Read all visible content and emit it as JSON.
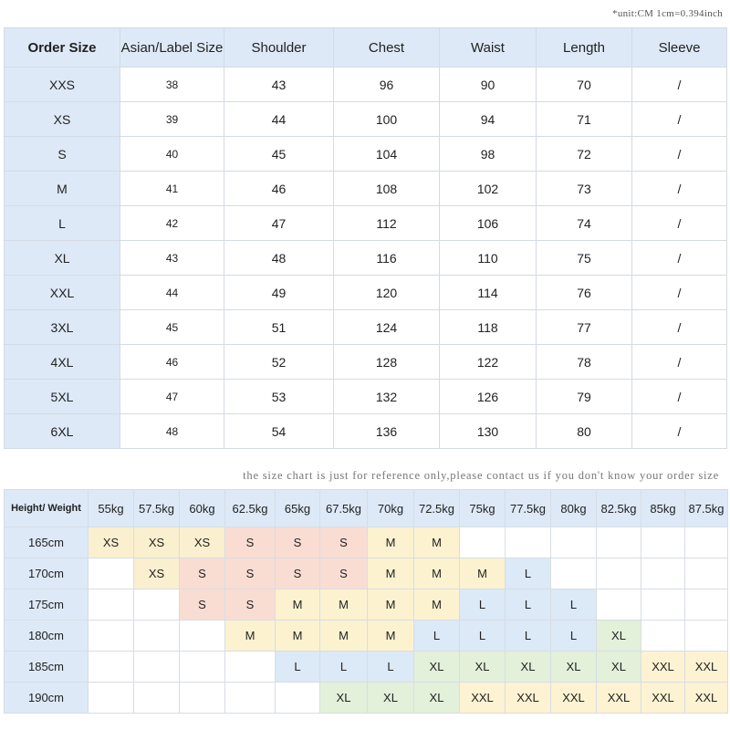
{
  "unit_note": "*unit:CM 1cm=0.394inch",
  "size_chart": {
    "headers": [
      "Order Size",
      "Asian/Label Size",
      "Shoulder",
      "Chest",
      "Waist",
      "Length",
      "Sleeve"
    ],
    "rows": [
      [
        "XXS",
        "38",
        "43",
        "96",
        "90",
        "70",
        "/"
      ],
      [
        "XS",
        "39",
        "44",
        "100",
        "94",
        "71",
        "/"
      ],
      [
        "S",
        "40",
        "45",
        "104",
        "98",
        "72",
        "/"
      ],
      [
        "M",
        "41",
        "46",
        "108",
        "102",
        "73",
        "/"
      ],
      [
        "L",
        "42",
        "47",
        "112",
        "106",
        "74",
        "/"
      ],
      [
        "XL",
        "43",
        "48",
        "116",
        "110",
        "75",
        "/"
      ],
      [
        "XXL",
        "44",
        "49",
        "120",
        "114",
        "76",
        "/"
      ],
      [
        "3XL",
        "45",
        "51",
        "124",
        "118",
        "77",
        "/"
      ],
      [
        "4XL",
        "46",
        "52",
        "128",
        "122",
        "78",
        "/"
      ],
      [
        "5XL",
        "47",
        "53",
        "132",
        "126",
        "79",
        "/"
      ],
      [
        "6XL",
        "48",
        "54",
        "136",
        "130",
        "80",
        "/"
      ]
    ]
  },
  "reference_note": "the size chart is just for reference only,please contact us if you don't know your order size",
  "height_weight_chart": {
    "corner": "Height/ Weight",
    "weights": [
      "55kg",
      "57.5kg",
      "60kg",
      "62.5kg",
      "65kg",
      "67.5kg",
      "70kg",
      "72.5kg",
      "75kg",
      "77.5kg",
      "80kg",
      "82.5kg",
      "85kg",
      "87.5kg"
    ],
    "rows": [
      {
        "height": "165cm",
        "cells": [
          "XS",
          "XS",
          "XS",
          "S",
          "S",
          "S",
          "M",
          "M",
          "",
          "",
          "",
          "",
          "",
          ""
        ]
      },
      {
        "height": "170cm",
        "cells": [
          "",
          "XS",
          "S",
          "S",
          "S",
          "S",
          "M",
          "M",
          "M",
          "L",
          "",
          "",
          "",
          ""
        ]
      },
      {
        "height": "175cm",
        "cells": [
          "",
          "",
          "S",
          "S",
          "M",
          "M",
          "M",
          "M",
          "L",
          "L",
          "L",
          "",
          "",
          ""
        ]
      },
      {
        "height": "180cm",
        "cells": [
          "",
          "",
          "",
          "M",
          "M",
          "M",
          "M",
          "L",
          "L",
          "L",
          "L",
          "XL",
          "",
          ""
        ]
      },
      {
        "height": "185cm",
        "cells": [
          "",
          "",
          "",
          "",
          "L",
          "L",
          "L",
          "XL",
          "XL",
          "XL",
          "XL",
          "XL",
          "XXL",
          "XXL"
        ]
      },
      {
        "height": "190cm",
        "cells": [
          "",
          "",
          "",
          "",
          "",
          "XL",
          "XL",
          "XL",
          "XXL",
          "XXL",
          "XXL",
          "XXL",
          "XXL",
          "XXL"
        ]
      }
    ],
    "size_colors": {
      "XS": "#faefcf",
      "S": "#f9ddd3",
      "M": "#fcf2cf",
      "L": "#dce9f6",
      "XL": "#e3f0da",
      "XXL": "#fdf3d2"
    }
  }
}
